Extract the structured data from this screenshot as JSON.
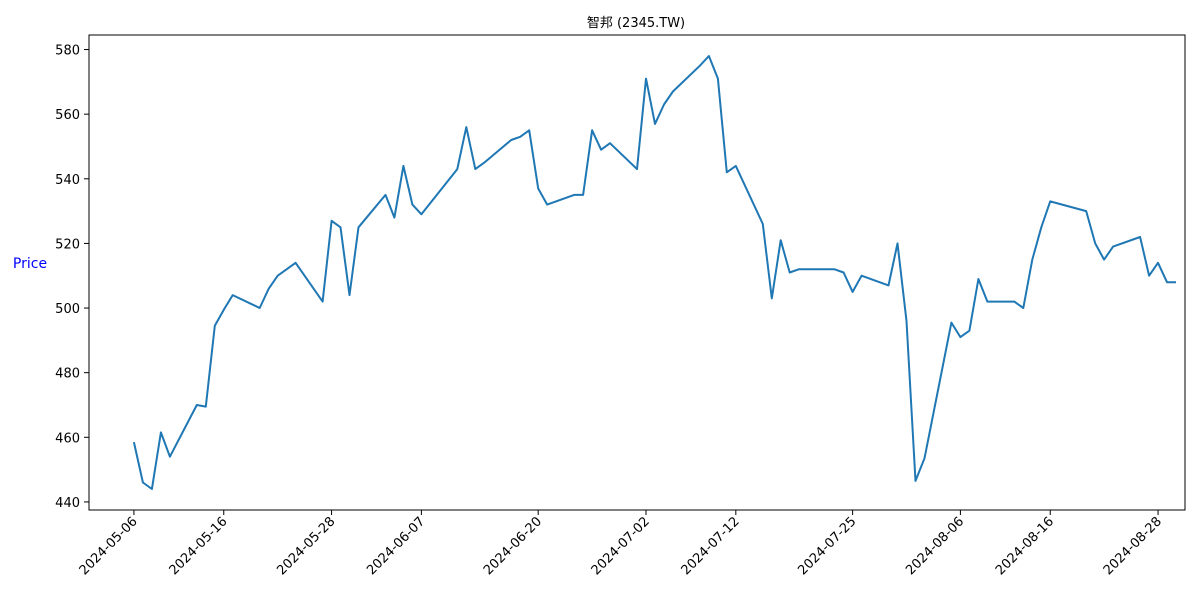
{
  "chart_data": {
    "type": "line",
    "title": "智邦 (2345.TW)",
    "xlabel": "",
    "ylabel": "Price",
    "ylabel_color": "#0000ff",
    "line_color": "#1f77b4",
    "grid": false,
    "ylim": [
      437.5,
      584.5
    ],
    "xlim": [
      "2024-05-01",
      "2024-08-31"
    ],
    "y_ticks": [
      440,
      460,
      480,
      500,
      520,
      540,
      560,
      580
    ],
    "x_tick_labels": [
      "2024-05-06",
      "2024-05-16",
      "2024-05-28",
      "2024-06-07",
      "2024-06-20",
      "2024-07-02",
      "2024-07-12",
      "2024-07-25",
      "2024-08-06",
      "2024-08-16",
      "2024-08-28"
    ],
    "series": [
      {
        "x": [
          "2024-05-06",
          "2024-05-07",
          "2024-05-08",
          "2024-05-09",
          "2024-05-10",
          "2024-05-13",
          "2024-05-14",
          "2024-05-15",
          "2024-05-16",
          "2024-05-17",
          "2024-05-20",
          "2024-05-21",
          "2024-05-22",
          "2024-05-23",
          "2024-05-24",
          "2024-05-27",
          "2024-05-28",
          "2024-05-29",
          "2024-05-30",
          "2024-05-31",
          "2024-06-03",
          "2024-06-04",
          "2024-06-05",
          "2024-06-06",
          "2024-06-07",
          "2024-06-11",
          "2024-06-12",
          "2024-06-13",
          "2024-06-14",
          "2024-06-17",
          "2024-06-18",
          "2024-06-19",
          "2024-06-20",
          "2024-06-21",
          "2024-06-24",
          "2024-06-25",
          "2024-06-26",
          "2024-06-27",
          "2024-06-28",
          "2024-07-01",
          "2024-07-02",
          "2024-07-03",
          "2024-07-04",
          "2024-07-05",
          "2024-07-08",
          "2024-07-09",
          "2024-07-10",
          "2024-07-11",
          "2024-07-12",
          "2024-07-15",
          "2024-07-16",
          "2024-07-17",
          "2024-07-18",
          "2024-07-19",
          "2024-07-22",
          "2024-07-23",
          "2024-07-24",
          "2024-07-25",
          "2024-07-26",
          "2024-07-29",
          "2024-07-30",
          "2024-07-31",
          "2024-08-01",
          "2024-08-02",
          "2024-08-05",
          "2024-08-06",
          "2024-08-07",
          "2024-08-08",
          "2024-08-09",
          "2024-08-12",
          "2024-08-13",
          "2024-08-14",
          "2024-08-15",
          "2024-08-16",
          "2024-08-20",
          "2024-08-21",
          "2024-08-22",
          "2024-08-23",
          "2024-08-26",
          "2024-08-27",
          "2024-08-28",
          "2024-08-29",
          "2024-08-30"
        ],
        "values": [
          458.5,
          446,
          444,
          461.5,
          454,
          470,
          469.5,
          494.5,
          499.5,
          504,
          500,
          506,
          510,
          512,
          514,
          502,
          527,
          525,
          504,
          525,
          535,
          528,
          544,
          532,
          529,
          543,
          556,
          543,
          545,
          552,
          553,
          555,
          537,
          532,
          535,
          535,
          555,
          549,
          551,
          543,
          571,
          557,
          563,
          567,
          575,
          578,
          571,
          542,
          544,
          526,
          503,
          521,
          511,
          512,
          512,
          512,
          511,
          505,
          510,
          507,
          520,
          496,
          446.5,
          453.5,
          495.5,
          491,
          493,
          509,
          502,
          502,
          500,
          515,
          525,
          533,
          530,
          520,
          515,
          519,
          522,
          510,
          514,
          508,
          508
        ]
      }
    ]
  }
}
